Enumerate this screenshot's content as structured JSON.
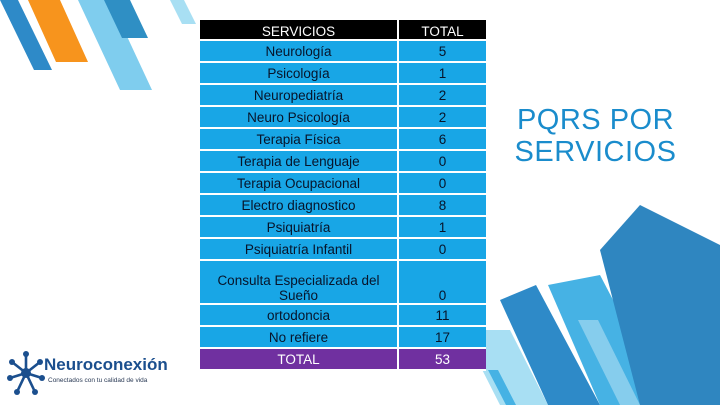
{
  "table": {
    "header": {
      "service": "SERVICIOS",
      "total": "TOTAL"
    },
    "rows": [
      {
        "service": "Neurología",
        "total": "5"
      },
      {
        "service": "Psicología",
        "total": "1"
      },
      {
        "service": "Neuropediatría",
        "total": "2"
      },
      {
        "service": "Neuro Psicología",
        "total": "2"
      },
      {
        "service": "Terapia Física",
        "total": "6"
      },
      {
        "service": "Terapia de Lenguaje",
        "total": "0"
      },
      {
        "service": "Terapia Ocupacional",
        "total": "0"
      },
      {
        "service": "Electro diagnostico",
        "total": "8"
      },
      {
        "service": "Psiquiatría",
        "total": "1"
      },
      {
        "service": "Psiquiatría Infantil",
        "total": "0"
      },
      {
        "service": "Consulta Especializada del Sueño",
        "total": "0"
      },
      {
        "service": "ortodoncia",
        "total": "11"
      },
      {
        "service": "No refiere",
        "total": "17"
      }
    ],
    "footer": {
      "service": "TOTAL",
      "total": "53"
    }
  },
  "title": "PQRS POR SERVICIOS",
  "logo": {
    "name": "Neuroconexión",
    "tagline": "Conectados con tu calidad de vida"
  },
  "colors": {
    "row_fill": "#18a6e6",
    "header_fill": "#000000",
    "total_fill": "#7030a0",
    "title": "#1a8ccc",
    "accent_orange": "#f7941d"
  }
}
